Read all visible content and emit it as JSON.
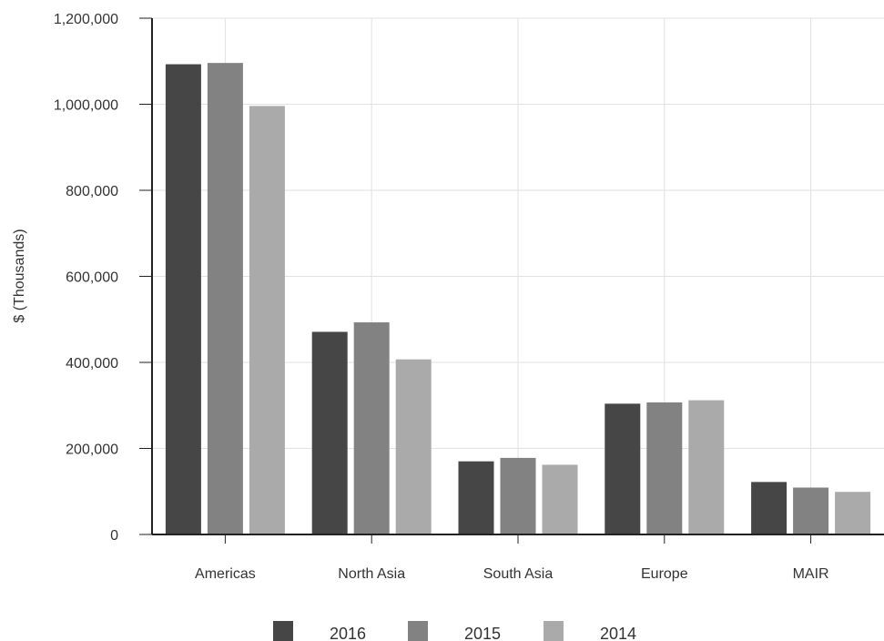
{
  "chart_data": {
    "type": "bar",
    "title": "",
    "xlabel": "",
    "ylabel": "$ (Thousands)",
    "ylim": [
      0,
      1200000
    ],
    "yticks": [
      0,
      200000,
      400000,
      600000,
      800000,
      1000000,
      1200000
    ],
    "ytick_labels": [
      "0",
      "200,000",
      "400,000",
      "600,000",
      "800,000",
      "1,000,000",
      "1,200,000"
    ],
    "grid": true,
    "legend_position": "bottom",
    "categories": [
      "Americas",
      "North Asia",
      "South Asia",
      "Europe",
      "MAIR"
    ],
    "series": [
      {
        "name": "2016",
        "color": "#464646",
        "values": [
          1093000,
          471000,
          170000,
          304000,
          122000
        ]
      },
      {
        "name": "2015",
        "color": "#828282",
        "values": [
          1096000,
          493000,
          178000,
          307000,
          109000
        ]
      },
      {
        "name": "2014",
        "color": "#aaaaaa",
        "values": [
          996000,
          407000,
          162000,
          312000,
          99000
        ]
      }
    ]
  }
}
